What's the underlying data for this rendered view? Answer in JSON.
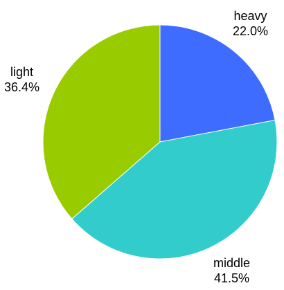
{
  "chart_data": {
    "type": "pie",
    "title": "",
    "start_angle_deg": 0,
    "direction": "clockwise",
    "slices": [
      {
        "name": "heavy",
        "value": 22.0,
        "label": "22.0%",
        "color": "#3d6cff"
      },
      {
        "name": "middle",
        "value": 41.5,
        "label": "41.5%",
        "color": "#33cccc"
      },
      {
        "name": "light",
        "value": 36.4,
        "label": "36.4%",
        "color": "#99cc00"
      }
    ],
    "slice_border_color": "#ffffff",
    "legend": "none"
  }
}
